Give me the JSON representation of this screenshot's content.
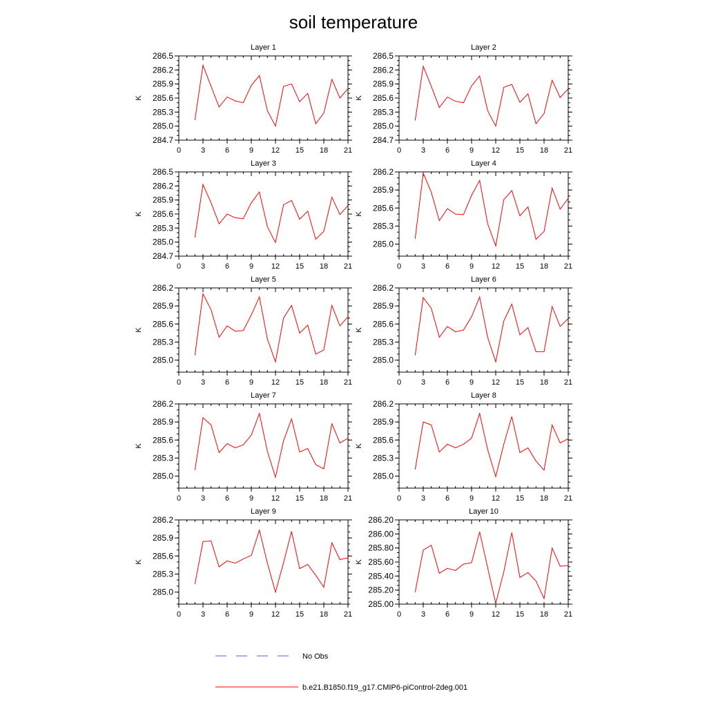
{
  "figure": {
    "title": "soil temperature",
    "legend_placement": "bottom-center"
  },
  "legend": [
    {
      "label": "No Obs",
      "color": "#5b5bd6",
      "style": "dashed"
    },
    {
      "label": "b.e21.B1850.f19_g17.CMIP6-piControl-2deg.001",
      "color": "#ff0000",
      "style": "solid"
    }
  ],
  "chart_data": [
    {
      "type": "line",
      "title": "Layer 1",
      "ylabel": "K",
      "xlim": [
        0,
        21
      ],
      "ylim": [
        284.7,
        286.5
      ],
      "xticks": [
        "0",
        "3",
        "6",
        "9",
        "12",
        "15",
        "18",
        "21"
      ],
      "yticks": [
        "284.7",
        "285.0",
        "285.3",
        "285.6",
        "285.9",
        "286.2",
        "286.5"
      ],
      "series": [
        {
          "color": "#ff0000",
          "x": [
            2,
            3,
            4,
            5,
            6,
            7,
            8,
            9,
            10,
            11,
            12,
            13,
            14,
            15,
            16,
            17,
            18,
            19,
            20,
            21
          ],
          "y": [
            285.13,
            286.3,
            285.85,
            285.41,
            285.62,
            285.54,
            285.5,
            285.87,
            286.08,
            285.33,
            285.0,
            285.85,
            285.9,
            285.52,
            285.7,
            285.05,
            285.28,
            286.0,
            285.6,
            285.8
          ]
        }
      ]
    },
    {
      "type": "line",
      "title": "Layer 2",
      "ylabel": "K",
      "xlim": [
        0,
        21
      ],
      "ylim": [
        284.7,
        286.5
      ],
      "xticks": [
        "0",
        "3",
        "6",
        "9",
        "12",
        "15",
        "18",
        "21"
      ],
      "yticks": [
        "284.7",
        "285.0",
        "285.3",
        "285.6",
        "285.9",
        "286.2",
        "286.5"
      ],
      "series": [
        {
          "color": "#ff0000",
          "x": [
            2,
            3,
            4,
            5,
            6,
            7,
            8,
            9,
            10,
            11,
            12,
            13,
            14,
            15,
            16,
            17,
            18,
            19,
            20,
            21
          ],
          "y": [
            285.12,
            286.28,
            285.85,
            285.4,
            285.62,
            285.53,
            285.5,
            285.86,
            286.07,
            285.33,
            285.0,
            285.83,
            285.89,
            285.51,
            285.69,
            285.05,
            285.27,
            285.98,
            285.61,
            285.8
          ]
        }
      ]
    },
    {
      "type": "line",
      "title": "Layer 3",
      "ylabel": "K",
      "xlim": [
        0,
        21
      ],
      "ylim": [
        284.7,
        286.5
      ],
      "xticks": [
        "0",
        "3",
        "6",
        "9",
        "12",
        "15",
        "18",
        "21"
      ],
      "yticks": [
        "284.7",
        "285.0",
        "285.3",
        "285.6",
        "285.9",
        "286.2",
        "286.5"
      ],
      "series": [
        {
          "color": "#ff0000",
          "x": [
            2,
            3,
            4,
            5,
            6,
            7,
            8,
            9,
            10,
            11,
            12,
            13,
            14,
            15,
            16,
            17,
            18,
            19,
            20,
            21
          ],
          "y": [
            285.1,
            286.23,
            285.84,
            285.39,
            285.6,
            285.52,
            285.5,
            285.84,
            286.07,
            285.33,
            284.99,
            285.8,
            285.89,
            285.49,
            285.66,
            285.06,
            285.23,
            285.96,
            285.59,
            285.78
          ]
        }
      ]
    },
    {
      "type": "line",
      "title": "Layer 4",
      "ylabel": "K",
      "xlim": [
        0,
        21
      ],
      "ylim": [
        284.8,
        286.2
      ],
      "xticks": [
        "0",
        "3",
        "6",
        "9",
        "12",
        "15",
        "18",
        "21"
      ],
      "yticks": [
        "285.0",
        "285.3",
        "285.6",
        "285.9",
        "286.2"
      ],
      "series": [
        {
          "color": "#ff0000",
          "x": [
            2,
            3,
            4,
            5,
            6,
            7,
            8,
            9,
            10,
            11,
            12,
            13,
            14,
            15,
            16,
            17,
            18,
            19,
            20,
            21
          ],
          "y": [
            285.09,
            286.18,
            285.86,
            285.39,
            285.59,
            285.5,
            285.49,
            285.81,
            286.06,
            285.34,
            284.97,
            285.74,
            285.89,
            285.47,
            285.62,
            285.08,
            285.21,
            285.93,
            285.58,
            285.76
          ]
        }
      ]
    },
    {
      "type": "line",
      "title": "Layer 5",
      "ylabel": "K",
      "xlim": [
        0,
        21
      ],
      "ylim": [
        284.8,
        286.2
      ],
      "xticks": [
        "0",
        "3",
        "6",
        "9",
        "12",
        "15",
        "18",
        "21"
      ],
      "yticks": [
        "285.0",
        "285.3",
        "285.6",
        "285.9",
        "286.2"
      ],
      "series": [
        {
          "color": "#ff0000",
          "x": [
            2,
            3,
            4,
            5,
            6,
            7,
            8,
            9,
            10,
            11,
            12,
            13,
            14,
            15,
            16,
            17,
            18,
            19,
            20,
            21
          ],
          "y": [
            285.08,
            286.1,
            285.84,
            285.38,
            285.57,
            285.48,
            285.49,
            285.75,
            286.05,
            285.35,
            284.97,
            285.7,
            285.91,
            285.45,
            285.58,
            285.1,
            285.17,
            285.91,
            285.57,
            285.72
          ]
        }
      ]
    },
    {
      "type": "line",
      "title": "Layer 6",
      "ylabel": "K",
      "xlim": [
        0,
        21
      ],
      "ylim": [
        284.8,
        286.2
      ],
      "xticks": [
        "0",
        "3",
        "6",
        "9",
        "12",
        "15",
        "18",
        "21"
      ],
      "yticks": [
        "285.0",
        "285.3",
        "285.6",
        "285.9",
        "286.2"
      ],
      "series": [
        {
          "color": "#ff0000",
          "x": [
            2,
            3,
            4,
            5,
            6,
            7,
            8,
            9,
            10,
            11,
            12,
            13,
            14,
            15,
            16,
            17,
            18,
            19,
            20,
            21
          ],
          "y": [
            285.08,
            286.04,
            285.86,
            285.38,
            285.56,
            285.47,
            285.5,
            285.72,
            286.05,
            285.38,
            284.97,
            285.65,
            285.93,
            285.42,
            285.54,
            285.14,
            285.14,
            285.89,
            285.56,
            285.69
          ]
        }
      ]
    },
    {
      "type": "line",
      "title": "Layer 7",
      "ylabel": "K",
      "xlim": [
        0,
        21
      ],
      "ylim": [
        284.8,
        286.2
      ],
      "xticks": [
        "0",
        "3",
        "6",
        "9",
        "12",
        "15",
        "18",
        "21"
      ],
      "yticks": [
        "285.0",
        "285.3",
        "285.6",
        "285.9",
        "286.2"
      ],
      "series": [
        {
          "color": "#ff0000",
          "x": [
            2,
            3,
            4,
            5,
            6,
            7,
            8,
            9,
            10,
            11,
            12,
            13,
            14,
            15,
            16,
            17,
            18,
            19,
            20,
            21
          ],
          "y": [
            285.1,
            285.97,
            285.85,
            285.39,
            285.54,
            285.47,
            285.52,
            285.68,
            286.04,
            285.41,
            284.98,
            285.59,
            285.95,
            285.4,
            285.46,
            285.19,
            285.12,
            285.87,
            285.55,
            285.63
          ]
        }
      ]
    },
    {
      "type": "line",
      "title": "Layer 8",
      "ylabel": "K",
      "xlim": [
        0,
        21
      ],
      "ylim": [
        284.8,
        286.2
      ],
      "xticks": [
        "0",
        "3",
        "6",
        "9",
        "12",
        "15",
        "18",
        "21"
      ],
      "yticks": [
        "285.0",
        "285.3",
        "285.6",
        "285.9",
        "286.2"
      ],
      "series": [
        {
          "color": "#ff0000",
          "x": [
            2,
            3,
            4,
            5,
            6,
            7,
            8,
            9,
            10,
            11,
            12,
            13,
            14,
            15,
            16,
            17,
            18,
            19,
            20,
            21
          ],
          "y": [
            285.11,
            285.9,
            285.85,
            285.4,
            285.53,
            285.47,
            285.53,
            285.63,
            286.04,
            285.44,
            284.99,
            285.53,
            285.99,
            285.39,
            285.47,
            285.25,
            285.1,
            285.85,
            285.55,
            285.62
          ]
        }
      ]
    },
    {
      "type": "line",
      "title": "Layer 9",
      "ylabel": "K",
      "xlim": [
        0,
        21
      ],
      "ylim": [
        284.8,
        286.2
      ],
      "xticks": [
        "0",
        "3",
        "6",
        "9",
        "12",
        "15",
        "18",
        "21"
      ],
      "yticks": [
        "285.0",
        "285.3",
        "285.6",
        "285.9",
        "286.2"
      ],
      "series": [
        {
          "color": "#ff0000",
          "x": [
            2,
            3,
            4,
            5,
            6,
            7,
            8,
            9,
            10,
            11,
            12,
            13,
            14,
            15,
            16,
            17,
            18,
            19,
            20,
            21
          ],
          "y": [
            285.13,
            285.84,
            285.85,
            285.42,
            285.52,
            285.48,
            285.55,
            285.61,
            286.03,
            285.48,
            285.0,
            285.49,
            286.01,
            285.39,
            285.46,
            285.28,
            285.08,
            285.82,
            285.54,
            285.57
          ]
        }
      ]
    },
    {
      "type": "line",
      "title": "Layer 10",
      "ylabel": "K",
      "xlim": [
        0,
        21
      ],
      "ylim": [
        285.0,
        286.2
      ],
      "xticks": [
        "0",
        "3",
        "6",
        "9",
        "12",
        "15",
        "18",
        "21"
      ],
      "yticks": [
        "285.00",
        "285.20",
        "285.40",
        "285.60",
        "285.80",
        "286.00",
        "286.20"
      ],
      "series": [
        {
          "color": "#ff0000",
          "x": [
            2,
            3,
            4,
            5,
            6,
            7,
            8,
            9,
            10,
            11,
            12,
            13,
            14,
            15,
            16,
            17,
            18,
            19,
            20,
            21
          ],
          "y": [
            285.17,
            285.77,
            285.84,
            285.44,
            285.51,
            285.48,
            285.57,
            285.59,
            286.03,
            285.52,
            285.01,
            285.46,
            286.02,
            285.38,
            285.45,
            285.33,
            285.08,
            285.8,
            285.54,
            285.55
          ]
        }
      ]
    }
  ]
}
